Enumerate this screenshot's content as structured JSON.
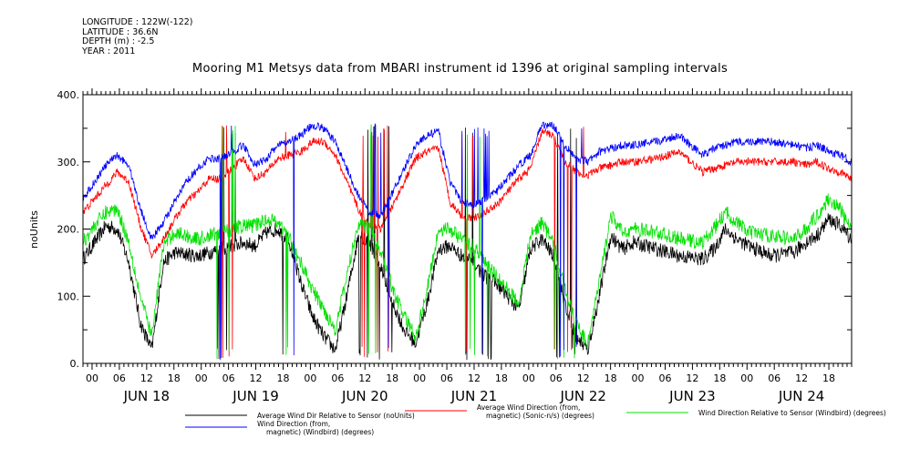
{
  "header": {
    "longitude": "LONGITUDE : 122W(-122)",
    "latitude": "LATITUDE : 36.6N",
    "depth": "DEPTH (m) : -2.5",
    "year": "YEAR : 2011"
  },
  "chart_data": {
    "type": "line",
    "title": "Mooring M1 Metsys data from MBARI instrument id 1396 at original sampling intervals",
    "ylabel": "noUnits",
    "ylim": [
      0,
      400
    ],
    "yticks": [
      0,
      100,
      200,
      300,
      400
    ],
    "ytick_labels": [
      "0.",
      "100.",
      "200.",
      "300.",
      "400."
    ],
    "xlim_days": [
      "JUN 17 22:00",
      "JUN 24 23:00"
    ],
    "hour_ticks": [
      "00",
      "06",
      "12",
      "18",
      "00",
      "06",
      "12",
      "18",
      "00",
      "06",
      "12",
      "18",
      "00",
      "06",
      "12",
      "18",
      "00",
      "06",
      "12",
      "18",
      "00",
      "06",
      "12",
      "18",
      "00",
      "06",
      "12",
      "18"
    ],
    "day_labels": [
      "JUN 18",
      "JUN 19",
      "JUN 20",
      "JUN 21",
      "JUN 22",
      "JUN 23",
      "JUN 24"
    ],
    "series": [
      {
        "name": "Average Wind Dir Relative to Sensor (noUnits)",
        "color": "#000000",
        "knots": [
          [
            0,
            155
          ],
          [
            3,
            180
          ],
          [
            6,
            205
          ],
          [
            9,
            200
          ],
          [
            12,
            150
          ],
          [
            15,
            60
          ],
          [
            18,
            20
          ],
          [
            21,
            150
          ],
          [
            24,
            165
          ],
          [
            30,
            160
          ],
          [
            36,
            170
          ],
          [
            42,
            180
          ],
          [
            45,
            175
          ],
          [
            48,
            195
          ],
          [
            51,
            200
          ],
          [
            54,
            180
          ],
          [
            57,
            120
          ],
          [
            60,
            70
          ],
          [
            63,
            40
          ],
          [
            66,
            20
          ],
          [
            69,
            100
          ],
          [
            72,
            190
          ],
          [
            75,
            180
          ],
          [
            78,
            140
          ],
          [
            81,
            90
          ],
          [
            84,
            50
          ],
          [
            87,
            30
          ],
          [
            90,
            90
          ],
          [
            93,
            170
          ],
          [
            96,
            175
          ],
          [
            99,
            160
          ],
          [
            102,
            150
          ],
          [
            105,
            130
          ],
          [
            108,
            120
          ],
          [
            111,
            100
          ],
          [
            114,
            80
          ],
          [
            117,
            170
          ],
          [
            120,
            185
          ],
          [
            123,
            160
          ],
          [
            126,
            90
          ],
          [
            129,
            40
          ],
          [
            132,
            20
          ],
          [
            135,
            100
          ],
          [
            138,
            190
          ],
          [
            141,
            170
          ],
          [
            144,
            180
          ],
          [
            150,
            170
          ],
          [
            156,
            160
          ],
          [
            162,
            155
          ],
          [
            165,
            170
          ],
          [
            168,
            200
          ],
          [
            171,
            185
          ],
          [
            174,
            175
          ],
          [
            180,
            160
          ],
          [
            186,
            165
          ],
          [
            189,
            180
          ],
          [
            192,
            190
          ],
          [
            195,
            215
          ],
          [
            198,
            205
          ],
          [
            201,
            185
          ]
        ],
        "noise": 11
      },
      {
        "name": "Average Wind Direction (from, magnetic) (Sonic-n/s) (degrees)",
        "color": "#ff0000",
        "knots": [
          [
            0,
            225
          ],
          [
            3,
            245
          ],
          [
            6,
            265
          ],
          [
            9,
            285
          ],
          [
            12,
            270
          ],
          [
            15,
            205
          ],
          [
            18,
            160
          ],
          [
            21,
            185
          ],
          [
            24,
            215
          ],
          [
            27,
            240
          ],
          [
            30,
            255
          ],
          [
            33,
            275
          ],
          [
            36,
            275
          ],
          [
            39,
            290
          ],
          [
            42,
            305
          ],
          [
            45,
            275
          ],
          [
            48,
            285
          ],
          [
            51,
            305
          ],
          [
            54,
            310
          ],
          [
            57,
            315
          ],
          [
            60,
            330
          ],
          [
            63,
            330
          ],
          [
            66,
            310
          ],
          [
            69,
            270
          ],
          [
            72,
            230
          ],
          [
            75,
            205
          ],
          [
            78,
            200
          ],
          [
            81,
            235
          ],
          [
            84,
            270
          ],
          [
            87,
            305
          ],
          [
            90,
            315
          ],
          [
            93,
            320
          ],
          [
            96,
            240
          ],
          [
            99,
            220
          ],
          [
            102,
            215
          ],
          [
            105,
            225
          ],
          [
            108,
            235
          ],
          [
            111,
            255
          ],
          [
            114,
            275
          ],
          [
            117,
            290
          ],
          [
            120,
            345
          ],
          [
            123,
            340
          ],
          [
            126,
            300
          ],
          [
            129,
            285
          ],
          [
            132,
            280
          ],
          [
            135,
            290
          ],
          [
            138,
            295
          ],
          [
            141,
            300
          ],
          [
            144,
            300
          ],
          [
            150,
            305
          ],
          [
            156,
            315
          ],
          [
            159,
            300
          ],
          [
            162,
            285
          ],
          [
            165,
            290
          ],
          [
            168,
            295
          ],
          [
            171,
            300
          ],
          [
            174,
            300
          ],
          [
            180,
            300
          ],
          [
            186,
            300
          ],
          [
            189,
            295
          ],
          [
            192,
            300
          ],
          [
            195,
            290
          ],
          [
            198,
            285
          ],
          [
            201,
            275
          ]
        ],
        "noise": 6
      },
      {
        "name": "Wind Direction Relative to Sensor (Windbird) (degrees)",
        "color": "#00e000",
        "knots": [
          [
            0,
            180
          ],
          [
            3,
            205
          ],
          [
            6,
            225
          ],
          [
            9,
            230
          ],
          [
            12,
            180
          ],
          [
            15,
            100
          ],
          [
            18,
            40
          ],
          [
            21,
            175
          ],
          [
            24,
            195
          ],
          [
            30,
            185
          ],
          [
            36,
            195
          ],
          [
            42,
            205
          ],
          [
            45,
            205
          ],
          [
            48,
            215
          ],
          [
            51,
            210
          ],
          [
            54,
            185
          ],
          [
            57,
            150
          ],
          [
            60,
            110
          ],
          [
            63,
            80
          ],
          [
            66,
            50
          ],
          [
            69,
            130
          ],
          [
            72,
            210
          ],
          [
            75,
            200
          ],
          [
            78,
            165
          ],
          [
            81,
            110
          ],
          [
            84,
            70
          ],
          [
            87,
            40
          ],
          [
            90,
            110
          ],
          [
            93,
            200
          ],
          [
            96,
            200
          ],
          [
            99,
            185
          ],
          [
            102,
            175
          ],
          [
            105,
            150
          ],
          [
            108,
            130
          ],
          [
            111,
            110
          ],
          [
            114,
            90
          ],
          [
            117,
            190
          ],
          [
            120,
            210
          ],
          [
            123,
            180
          ],
          [
            126,
            110
          ],
          [
            129,
            60
          ],
          [
            132,
            30
          ],
          [
            135,
            120
          ],
          [
            138,
            220
          ],
          [
            141,
            195
          ],
          [
            144,
            200
          ],
          [
            150,
            195
          ],
          [
            156,
            185
          ],
          [
            162,
            180
          ],
          [
            165,
            200
          ],
          [
            168,
            225
          ],
          [
            171,
            210
          ],
          [
            174,
            195
          ],
          [
            180,
            190
          ],
          [
            186,
            185
          ],
          [
            189,
            200
          ],
          [
            192,
            220
          ],
          [
            195,
            245
          ],
          [
            198,
            230
          ],
          [
            201,
            195
          ]
        ],
        "noise": 11
      },
      {
        "name": "Wind Direction (from, magnetic) (Windbird) (degrees)",
        "color": "#0000ff",
        "knots": [
          [
            0,
            245
          ],
          [
            3,
            270
          ],
          [
            6,
            295
          ],
          [
            9,
            310
          ],
          [
            12,
            295
          ],
          [
            15,
            230
          ],
          [
            18,
            185
          ],
          [
            21,
            210
          ],
          [
            24,
            240
          ],
          [
            27,
            270
          ],
          [
            30,
            290
          ],
          [
            33,
            305
          ],
          [
            36,
            305
          ],
          [
            39,
            315
          ],
          [
            42,
            325
          ],
          [
            45,
            295
          ],
          [
            48,
            305
          ],
          [
            51,
            325
          ],
          [
            54,
            330
          ],
          [
            57,
            340
          ],
          [
            60,
            355
          ],
          [
            63,
            350
          ],
          [
            66,
            330
          ],
          [
            69,
            290
          ],
          [
            72,
            250
          ],
          [
            75,
            225
          ],
          [
            78,
            220
          ],
          [
            81,
            255
          ],
          [
            84,
            290
          ],
          [
            87,
            325
          ],
          [
            90,
            340
          ],
          [
            93,
            345
          ],
          [
            96,
            270
          ],
          [
            99,
            240
          ],
          [
            102,
            235
          ],
          [
            105,
            245
          ],
          [
            108,
            255
          ],
          [
            111,
            275
          ],
          [
            114,
            295
          ],
          [
            117,
            310
          ],
          [
            120,
            355
          ],
          [
            123,
            355
          ],
          [
            126,
            325
          ],
          [
            129,
            305
          ],
          [
            132,
            300
          ],
          [
            135,
            315
          ],
          [
            138,
            320
          ],
          [
            141,
            325
          ],
          [
            144,
            325
          ],
          [
            150,
            330
          ],
          [
            156,
            340
          ],
          [
            159,
            325
          ],
          [
            162,
            310
          ],
          [
            165,
            320
          ],
          [
            168,
            325
          ],
          [
            171,
            330
          ],
          [
            174,
            330
          ],
          [
            180,
            330
          ],
          [
            186,
            325
          ],
          [
            189,
            320
          ],
          [
            192,
            325
          ],
          [
            195,
            315
          ],
          [
            198,
            310
          ],
          [
            201,
            300
          ]
        ],
        "noise": 6
      }
    ],
    "wrap_regions": [
      [
        35,
        40
      ],
      [
        52,
        56
      ],
      [
        72,
        81
      ],
      [
        99,
        107
      ],
      [
        123,
        131
      ]
    ]
  }
}
